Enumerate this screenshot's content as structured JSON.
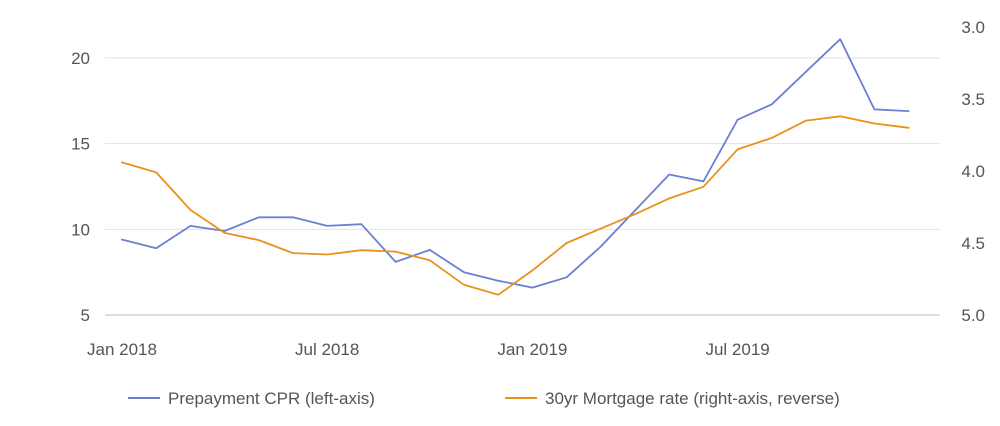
{
  "chart_data": {
    "type": "line",
    "title": "",
    "x_ticks": [
      "Jan 2018",
      "Jul 2018",
      "Jan 2019",
      "Jul 2019"
    ],
    "x": [
      "2018-01",
      "2018-02",
      "2018-03",
      "2018-04",
      "2018-05",
      "2018-06",
      "2018-07",
      "2018-08",
      "2018-09",
      "2018-10",
      "2018-11",
      "2018-12",
      "2019-01",
      "2019-02",
      "2019-03",
      "2019-04",
      "2019-05",
      "2019-06",
      "2019-07",
      "2019-08",
      "2019-09",
      "2019-10",
      "2019-11",
      "2019-12"
    ],
    "left_axis": {
      "ylim": [
        5,
        22.5
      ],
      "ticks": [
        5,
        10,
        15,
        20
      ]
    },
    "right_axis": {
      "ylim": [
        3.0,
        5.0
      ],
      "ticks": [
        "3.0",
        "3.5",
        "4.0",
        "4.5",
        "5.0"
      ],
      "reverse": true
    },
    "grid": true,
    "legend_position": "bottom",
    "series": [
      {
        "name": "Prepayment CPR (left-axis)",
        "axis": "left",
        "color": "#6b7fd4",
        "values": [
          9.4,
          8.9,
          10.2,
          9.9,
          10.7,
          10.7,
          10.2,
          10.3,
          8.1,
          8.8,
          7.5,
          7.0,
          6.6,
          7.2,
          9.0,
          11.1,
          13.2,
          12.8,
          16.4,
          17.3,
          19.2,
          21.1,
          17.0,
          16.9
        ]
      },
      {
        "name": "30yr Mortgage rate (right-axis, reverse)",
        "axis": "right",
        "color": "#e8921a",
        "values": [
          3.94,
          4.01,
          4.27,
          4.43,
          4.48,
          4.57,
          4.58,
          4.55,
          4.56,
          4.62,
          4.79,
          4.86,
          4.69,
          4.5,
          4.4,
          4.3,
          4.19,
          4.11,
          3.85,
          3.77,
          3.65,
          3.62,
          3.67,
          3.7
        ]
      }
    ]
  }
}
